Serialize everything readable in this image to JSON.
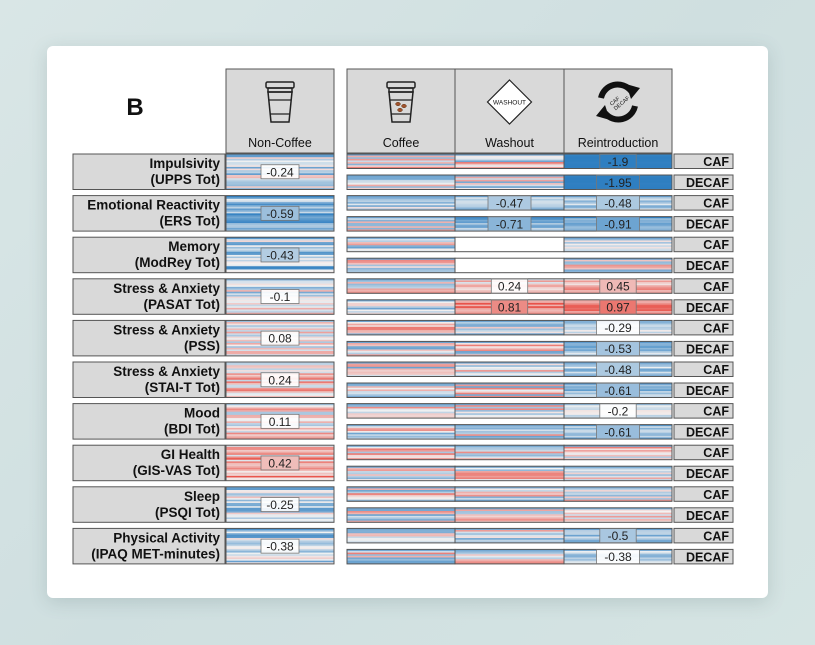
{
  "panel_label": "B",
  "column_headers": [
    {
      "key": "noncoffee",
      "label": "Non-Coffee",
      "icon": "plain-coffee-cup-icon"
    },
    {
      "key": "coffee",
      "label": "Coffee",
      "icon": "coffee-cup-beans-icon"
    },
    {
      "key": "washout",
      "label": "Washout",
      "icon": "washout-diamond-icon",
      "icon_text": "WASHOUT"
    },
    {
      "key": "reintro",
      "label": "Reintroduction",
      "icon": "caf-decaf-cycle-icon",
      "icon_text_1": "CAF",
      "icon_text_2": "DECAF"
    }
  ],
  "colors": {
    "header_bg": "#d9d9d9",
    "label_bg": "#d9d9d9",
    "positive": "#e8493f",
    "negative": "#2f7fc1",
    "neutral": "#f2f2f2"
  },
  "chart_data": {
    "type": "heatmap",
    "title": "",
    "columns": [
      "Non-Coffee",
      "Coffee",
      "Washout",
      "Reintroduction"
    ],
    "conditions": [
      "CAF",
      "DECAF"
    ],
    "measures": [
      {
        "label_1": "Impulsivity",
        "label_2": "(UPPS Tot)",
        "noncoffee": -0.24,
        "rows": [
          {
            "condition": "CAF",
            "coffee": null,
            "washout": null,
            "reintro": -1.9
          },
          {
            "condition": "DECAF",
            "coffee": null,
            "washout": null,
            "reintro": -1.95
          }
        ]
      },
      {
        "label_1": "Emotional Reactivity",
        "label_2": "(ERS Tot)",
        "noncoffee": -0.59,
        "rows": [
          {
            "condition": "CAF",
            "coffee": null,
            "washout": -0.47,
            "reintro": -0.48
          },
          {
            "condition": "DECAF",
            "coffee": null,
            "washout": -0.71,
            "reintro": -0.91
          }
        ]
      },
      {
        "label_1": "Memory",
        "label_2": "(ModRey Tot)",
        "noncoffee": -0.43,
        "rows": [
          {
            "condition": "CAF",
            "coffee": null,
            "washout": null,
            "reintro": null
          },
          {
            "condition": "DECAF",
            "coffee": null,
            "washout": null,
            "reintro": null
          }
        ]
      },
      {
        "label_1": "Stress & Anxiety",
        "label_2": "(PASAT Tot)",
        "noncoffee": -0.1,
        "rows": [
          {
            "condition": "CAF",
            "coffee": null,
            "washout": 0.24,
            "reintro": 0.45
          },
          {
            "condition": "DECAF",
            "coffee": null,
            "washout": 0.81,
            "reintro": 0.97
          }
        ]
      },
      {
        "label_1": "Stress & Anxiety",
        "label_2": "(PSS)",
        "noncoffee": 0.08,
        "rows": [
          {
            "condition": "CAF",
            "coffee": null,
            "washout": null,
            "reintro": -0.29
          },
          {
            "condition": "DECAF",
            "coffee": null,
            "washout": null,
            "reintro": -0.53
          }
        ]
      },
      {
        "label_1": "Stress & Anxiety",
        "label_2": "(STAI-T Tot)",
        "noncoffee": 0.24,
        "rows": [
          {
            "condition": "CAF",
            "coffee": null,
            "washout": null,
            "reintro": -0.48
          },
          {
            "condition": "DECAF",
            "coffee": null,
            "washout": null,
            "reintro": -0.61
          }
        ]
      },
      {
        "label_1": "Mood",
        "label_2": "(BDI Tot)",
        "noncoffee": 0.11,
        "rows": [
          {
            "condition": "CAF",
            "coffee": null,
            "washout": null,
            "reintro": -0.2
          },
          {
            "condition": "DECAF",
            "coffee": null,
            "washout": null,
            "reintro": -0.61
          }
        ]
      },
      {
        "label_1": "GI Health",
        "label_2": "(GIS-VAS Tot)",
        "noncoffee": 0.42,
        "rows": [
          {
            "condition": "CAF",
            "coffee": null,
            "washout": null,
            "reintro": null
          },
          {
            "condition": "DECAF",
            "coffee": null,
            "washout": null,
            "reintro": null
          }
        ]
      },
      {
        "label_1": "Sleep",
        "label_2": "(PSQI Tot)",
        "noncoffee": -0.25,
        "rows": [
          {
            "condition": "CAF",
            "coffee": null,
            "washout": null,
            "reintro": null
          },
          {
            "condition": "DECAF",
            "coffee": null,
            "washout": null,
            "reintro": null
          }
        ]
      },
      {
        "label_1": "Physical Activity",
        "label_2": "(IPAQ MET-minutes)",
        "noncoffee": -0.38,
        "rows": [
          {
            "condition": "CAF",
            "coffee": null,
            "washout": null,
            "reintro": -0.5
          },
          {
            "condition": "DECAF",
            "coffee": null,
            "washout": null,
            "reintro": -0.38
          }
        ]
      }
    ]
  }
}
